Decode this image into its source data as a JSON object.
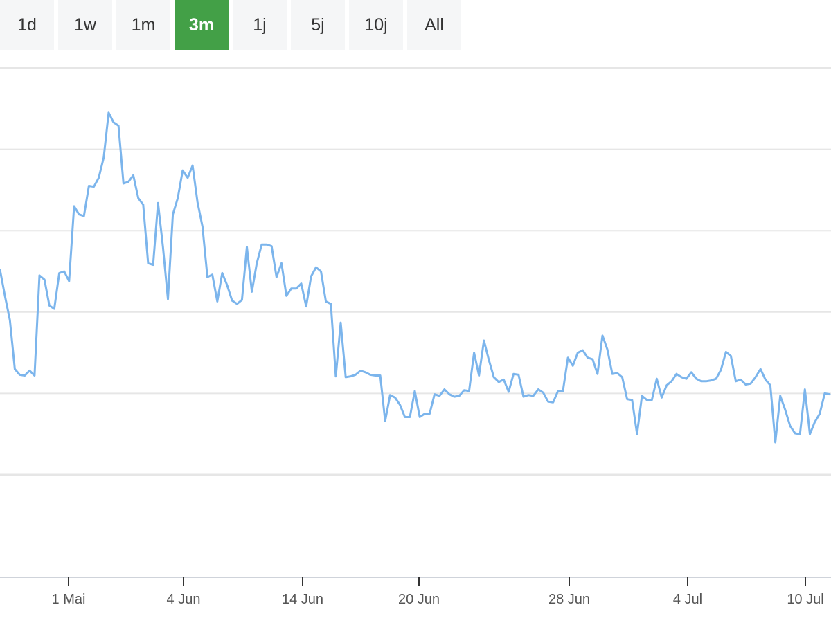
{
  "range_selector": {
    "buttons": [
      "1d",
      "1w",
      "1m",
      "3m",
      "1j",
      "5j",
      "10j",
      "All"
    ],
    "selected": "3m",
    "active_color": "#43a047"
  },
  "chart_data": {
    "type": "line",
    "x_tick_labels": [
      "1 Mai",
      "4 Jun",
      "14 Jun",
      "20 Jun",
      "28 Jun",
      "4 Jul",
      "10 Jul"
    ],
    "y_range": [
      0,
      5
    ],
    "grid": true,
    "line_color": "#7cb5ec",
    "series": [
      {
        "values": [
          2.52,
          2.2,
          1.9,
          1.3,
          1.23,
          1.22,
          1.28,
          1.22,
          2.45,
          2.4,
          2.08,
          2.04,
          2.48,
          2.5,
          2.38,
          3.3,
          3.2,
          3.18,
          3.55,
          3.54,
          3.65,
          3.9,
          4.45,
          4.33,
          4.29,
          3.58,
          3.6,
          3.68,
          3.4,
          3.32,
          2.6,
          2.58,
          3.34,
          2.8,
          2.16,
          3.2,
          3.4,
          3.74,
          3.65,
          3.8,
          3.35,
          3.05,
          2.43,
          2.46,
          2.13,
          2.48,
          2.33,
          2.14,
          2.1,
          2.15,
          2.8,
          2.25,
          2.6,
          2.83,
          2.83,
          2.81,
          2.43,
          2.6,
          2.2,
          2.29,
          2.29,
          2.35,
          2.07,
          2.44,
          2.55,
          2.5,
          2.13,
          2.1,
          1.21,
          1.87,
          1.2,
          1.21,
          1.23,
          1.28,
          1.26,
          1.23,
          1.22,
          1.22,
          0.66,
          0.98,
          0.95,
          0.86,
          0.71,
          0.71,
          1.03,
          0.71,
          0.75,
          0.75,
          0.99,
          0.97,
          1.05,
          0.99,
          0.96,
          0.97,
          1.04,
          1.03,
          1.5,
          1.22,
          1.65,
          1.41,
          1.2,
          1.14,
          1.17,
          1.02,
          1.24,
          1.23,
          0.96,
          0.98,
          0.97,
          1.05,
          1.01,
          0.9,
          0.89,
          1.03,
          1.03,
          1.44,
          1.34,
          1.5,
          1.53,
          1.44,
          1.42,
          1.24,
          1.71,
          1.54,
          1.24,
          1.25,
          1.2,
          0.93,
          0.92,
          0.5,
          0.97,
          0.92,
          0.92,
          1.18,
          0.95,
          1.1,
          1.15,
          1.24,
          1.2,
          1.18,
          1.26,
          1.18,
          1.15,
          1.15,
          1.16,
          1.18,
          1.29,
          1.51,
          1.46,
          1.15,
          1.17,
          1.11,
          1.12,
          1.2,
          1.3,
          1.17,
          1.1,
          0.4,
          0.97,
          0.8,
          0.6,
          0.51,
          0.5,
          1.05,
          0.5,
          0.65,
          0.75,
          1.0,
          0.99
        ]
      }
    ]
  }
}
